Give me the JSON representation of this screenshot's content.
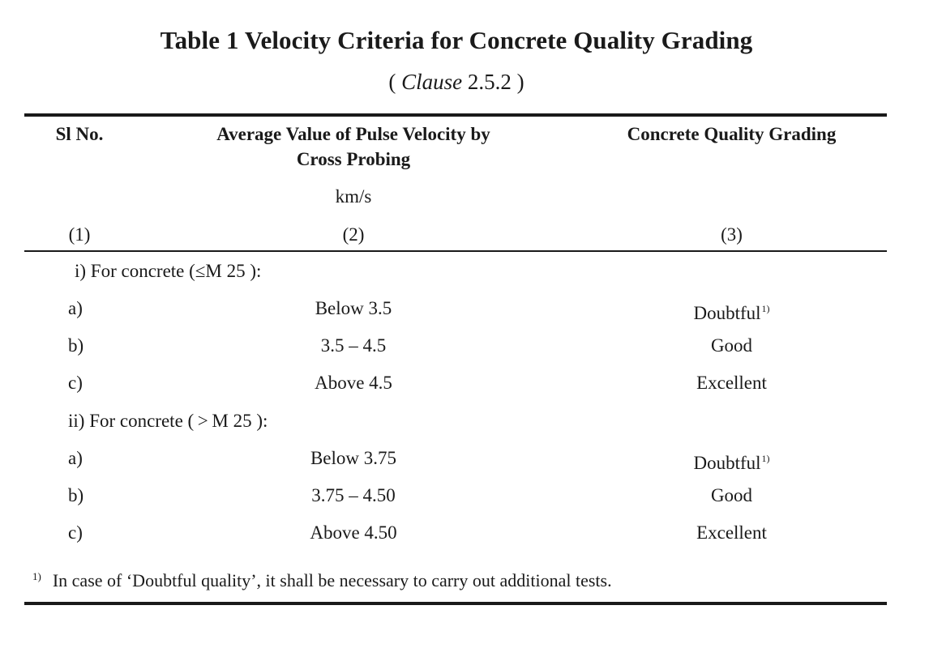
{
  "title": "Table 1 Velocity Criteria for Concrete Quality Grading",
  "clause": {
    "open": "( ",
    "word": "Clause",
    "number": " 2.5.2 )"
  },
  "headers": {
    "col1": "Sl No.",
    "col2_line1": "Average Value of Pulse Velocity by",
    "col2_line2": "Cross Probing",
    "col2_unit": "km/s",
    "col3": "Concrete Quality Grading",
    "num1": "(1)",
    "num2": "(2)",
    "num3": "(3)"
  },
  "groups": [
    {
      "label": "i) For concrete (≤M 25 ):",
      "rows": [
        {
          "sl": "a)",
          "velocity": "Below 3.5",
          "grading": "Doubtful",
          "note": "1)"
        },
        {
          "sl": "b)",
          "velocity": "3.5 – 4.5",
          "grading": "Good",
          "note": ""
        },
        {
          "sl": "c)",
          "velocity": "Above 4.5",
          "grading": "Excellent",
          "note": ""
        }
      ]
    },
    {
      "label": "ii) For concrete ( > M 25 ):",
      "rows": [
        {
          "sl": "a)",
          "velocity": "Below 3.75",
          "grading": "Doubtful",
          "note": "1)"
        },
        {
          "sl": "b)",
          "velocity": "3.75 – 4.50",
          "grading": "Good",
          "note": ""
        },
        {
          "sl": "c)",
          "velocity": "Above 4.50",
          "grading": "Excellent",
          "note": ""
        }
      ]
    }
  ],
  "footnote": {
    "mark": "1)",
    "text": "In case of ‘Doubtful quality’, it shall be necessary to carry out additional tests."
  }
}
